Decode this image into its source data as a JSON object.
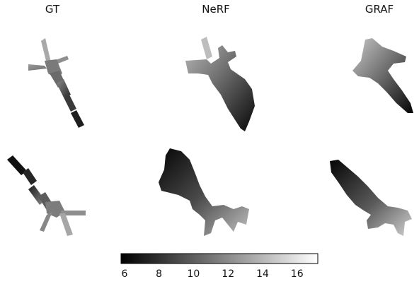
{
  "figure": {
    "columns": [
      {
        "key": "gt",
        "label": "GT"
      },
      {
        "key": "nerf",
        "label": "NeRF"
      },
      {
        "key": "graf",
        "label": "GRAF"
      }
    ],
    "rows": 2
  },
  "colorbar": {
    "colormap": "grayscale",
    "vmin": 5.8,
    "vmax": 17.2,
    "ticks": [
      {
        "value": 6,
        "label": "6"
      },
      {
        "value": 8,
        "label": "8"
      },
      {
        "value": 10,
        "label": "10"
      },
      {
        "value": 12,
        "label": "12"
      },
      {
        "value": 14,
        "label": "14"
      },
      {
        "value": 16,
        "label": "16"
      }
    ],
    "low_color": "#000000",
    "high_color": "#ffffff"
  }
}
